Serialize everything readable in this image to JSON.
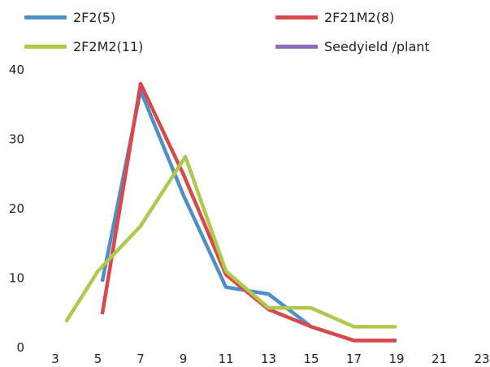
{
  "chart_data": {
    "type": "line",
    "xlim": [
      3,
      23
    ],
    "ylim": [
      0,
      40
    ],
    "x_ticks": [
      3,
      5,
      7,
      9,
      11,
      13,
      15,
      17,
      19,
      21,
      23
    ],
    "y_ticks": [
      0,
      10,
      20,
      30,
      40
    ],
    "grid": false,
    "legend_position": "top",
    "series": [
      {
        "name": "2F2(5)",
        "color": "#4e8fc8",
        "x": [
          5.2,
          7,
          9,
          11,
          13,
          15,
          17,
          19
        ],
        "y": [
          9.5,
          37,
          22,
          8.7,
          7.7,
          3,
          1,
          1
        ]
      },
      {
        "name": "2F21M2(8)",
        "color": "#d9484a",
        "x": [
          5.2,
          7,
          9,
          11,
          13,
          15,
          17,
          19
        ],
        "y": [
          4.8,
          38,
          25,
          10.5,
          5.5,
          3,
          1,
          1
        ]
      },
      {
        "name": "2F2M2(11)",
        "color": "#afc94e",
        "x": [
          3.5,
          5,
          7,
          9.1,
          11,
          13,
          15,
          17,
          19
        ],
        "y": [
          3.7,
          11,
          17.5,
          27.5,
          11,
          5.7,
          5.7,
          3,
          3
        ]
      },
      {
        "name": "Seedyield /plant",
        "color": "#8e6bbf",
        "x": [],
        "y": []
      }
    ]
  }
}
